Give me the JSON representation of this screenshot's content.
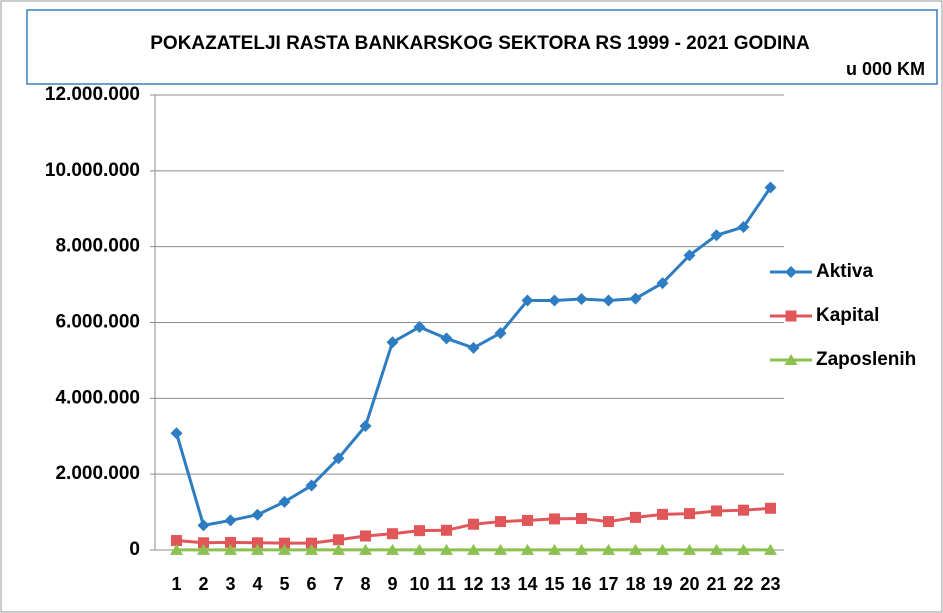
{
  "chart_data": {
    "type": "line",
    "title": "POKAZATELJI RASTA BANKARSKOG SEKTORA RS 1999 - 2021 GODINA",
    "subtitle": "u 000 KM",
    "categories": [
      "1",
      "2",
      "3",
      "4",
      "5",
      "6",
      "7",
      "8",
      "9",
      "10",
      "11",
      "12",
      "13",
      "14",
      "15",
      "16",
      "17",
      "18",
      "19",
      "20",
      "21",
      "22",
      "23"
    ],
    "series": [
      {
        "name": "Aktiva",
        "color": "#2e7dc2",
        "marker": "diamond",
        "values": [
          3080000,
          650000,
          780000,
          930000,
          1270000,
          1700000,
          2420000,
          3270000,
          5480000,
          5880000,
          5580000,
          5330000,
          5720000,
          6580000,
          6580000,
          6620000,
          6580000,
          6630000,
          7040000,
          7770000,
          8300000,
          8520000,
          9560000
        ]
      },
      {
        "name": "Kapital",
        "color": "#e15759",
        "marker": "square",
        "values": [
          250000,
          190000,
          200000,
          190000,
          180000,
          180000,
          270000,
          370000,
          430000,
          510000,
          520000,
          680000,
          750000,
          780000,
          820000,
          830000,
          750000,
          860000,
          940000,
          960000,
          1030000,
          1050000,
          1100000
        ]
      },
      {
        "name": "Zaposlenih",
        "color": "#8cc152",
        "marker": "triangle",
        "values": [
          3000,
          3000,
          3000,
          3000,
          3000,
          3000,
          3000,
          3000,
          3000,
          3000,
          3000,
          3000,
          3000,
          3000,
          3000,
          3000,
          3000,
          3000,
          3000,
          3000,
          3000,
          3000,
          3000
        ]
      }
    ],
    "ylim": [
      0,
      12000000
    ],
    "yticks": [
      0,
      {
        "value": 2000000,
        "label": "2.000.000"
      },
      {
        "value": 4000000,
        "label": "4.000.000"
      },
      {
        "value": 6000000,
        "label": "6.000.000"
      },
      {
        "value": 8000000,
        "label": "8.000.000"
      },
      {
        "value": 10000000,
        "label": "10.000.000"
      },
      {
        "value": 12000000,
        "label": "12.000.000"
      }
    ],
    "grid": true,
    "legend": "right"
  }
}
